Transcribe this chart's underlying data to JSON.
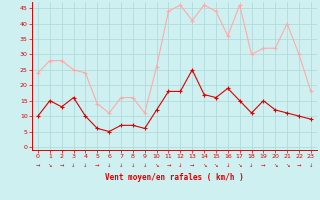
{
  "hours": [
    0,
    1,
    2,
    3,
    4,
    5,
    6,
    7,
    8,
    9,
    10,
    11,
    12,
    13,
    14,
    15,
    16,
    17,
    18,
    19,
    20,
    21,
    22,
    23
  ],
  "wind_avg": [
    10,
    15,
    13,
    16,
    10,
    6,
    5,
    7,
    7,
    6,
    12,
    18,
    18,
    25,
    17,
    16,
    19,
    15,
    11,
    15,
    12,
    11,
    10,
    9
  ],
  "wind_gust": [
    24,
    28,
    28,
    25,
    24,
    14,
    11,
    16,
    16,
    11,
    26,
    44,
    46,
    41,
    46,
    44,
    36,
    46,
    30,
    32,
    32,
    40,
    30,
    18
  ],
  "wind_dir_arrows": [
    "→",
    "↘",
    "→",
    "↓",
    "↓",
    "→",
    "↓",
    "↓",
    "↓",
    "↓",
    "↘",
    "→",
    "↓",
    "→",
    "↘",
    "↘",
    "↓",
    "↘",
    "↓",
    "→",
    "↘",
    "↘",
    "→",
    "↓"
  ],
  "ylabel_values": [
    0,
    5,
    10,
    15,
    20,
    25,
    30,
    35,
    40,
    45
  ],
  "xlabel": "Vent moyen/en rafales ( km/h )",
  "bg_color": "#cff0f0",
  "grid_color": "#aad8d8",
  "avg_color": "#dd0000",
  "gust_color": "#ffaaaa",
  "arrow_color": "#dd0000",
  "axis_color": "#dd0000",
  "label_color": "#dd0000",
  "ylim": [
    -1,
    47
  ],
  "xlim": [
    -0.5,
    23.5
  ]
}
